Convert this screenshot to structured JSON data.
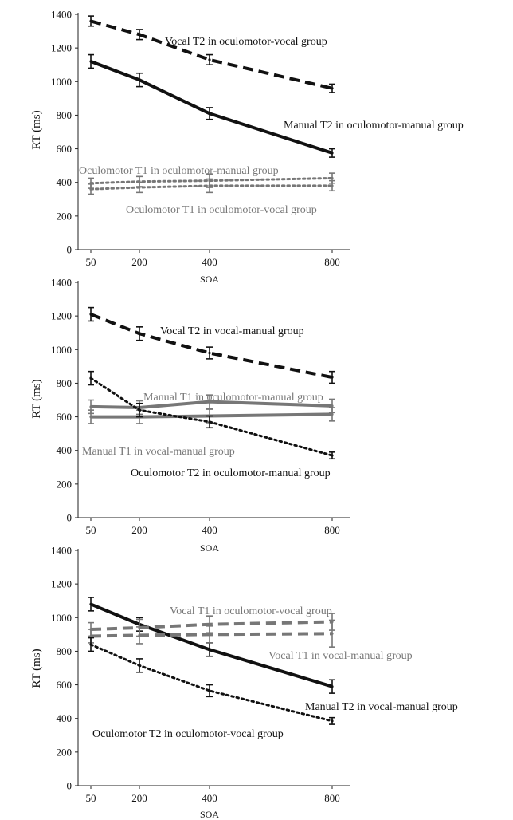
{
  "chart_data": [
    {
      "type": "line",
      "xlabel": "SOA",
      "ylabel": "RT (ms)",
      "x": [
        50,
        200,
        400,
        800
      ],
      "x_ticks": [
        "50",
        "200",
        "400",
        "800"
      ],
      "ylim": [
        0,
        1400
      ],
      "y_ticks": [
        0,
        200,
        400,
        600,
        800,
        1000,
        1200,
        1400
      ],
      "grid": false,
      "series": [
        {
          "name": "Vocal T2 in oculomotor-vocal group",
          "values": [
            1360,
            1280,
            1130,
            960
          ],
          "error": [
            30,
            30,
            30,
            25
          ],
          "style": "dashed",
          "color": "#111111",
          "label_text": "Vocal  T2 in oculomotor-vocal  group"
        },
        {
          "name": "Manual T2 in oculomotor-manual group",
          "values": [
            1120,
            1010,
            810,
            575
          ],
          "error": [
            40,
            40,
            35,
            25
          ],
          "style": "solid",
          "color": "#111111",
          "label_text": "Manual T2 in oculomotor-manual  group"
        },
        {
          "name": "Oculomotor T1 in oculomotor-manual group",
          "values": [
            395,
            405,
            410,
            425
          ],
          "error": [
            30,
            30,
            40,
            30
          ],
          "style": "dotted",
          "color": "#777777",
          "label_text": "Oculomotor T1 in oculomotor-manual group"
        },
        {
          "name": "Oculomotor T1 in oculomotor-vocal group",
          "values": [
            360,
            370,
            380,
            380
          ],
          "error": [
            30,
            30,
            40,
            30
          ],
          "style": "dotted",
          "color": "#777777",
          "label_text": "Oculomotor T1 in oculomotor-vocal group"
        }
      ]
    },
    {
      "type": "line",
      "xlabel": "SOA",
      "ylabel": "RT (ms)",
      "x": [
        50,
        200,
        400,
        800
      ],
      "x_ticks": [
        "50",
        "200",
        "400",
        "800"
      ],
      "ylim": [
        0,
        1400
      ],
      "y_ticks": [
        0,
        200,
        400,
        600,
        800,
        1000,
        1200,
        1400
      ],
      "grid": false,
      "series": [
        {
          "name": "Vocal T2 in vocal-manual group",
          "values": [
            1210,
            1095,
            980,
            835
          ],
          "error": [
            40,
            40,
            35,
            35
          ],
          "style": "dashed",
          "color": "#111111",
          "label_text": "Vocal  T2 in vocal-manual  group"
        },
        {
          "name": "Manual T1 in oculomotor-manual group",
          "values": [
            660,
            655,
            690,
            665
          ],
          "error": [
            40,
            40,
            40,
            40
          ],
          "style": "solid",
          "color": "#777777",
          "label_text": "Manual T1 in oculomotor-manual  group"
        },
        {
          "name": "Manual T1 in vocal-manual group",
          "values": [
            600,
            600,
            605,
            615
          ],
          "error": [
            40,
            40,
            40,
            40
          ],
          "style": "solid",
          "color": "#777777",
          "label_text": "Manual T1 in vocal-manual  group"
        },
        {
          "name": "Oculomotor T2 in oculomotor-manual group",
          "values": [
            830,
            640,
            570,
            370
          ],
          "error": [
            40,
            40,
            35,
            20
          ],
          "style": "dotted",
          "color": "#111111",
          "label_text": "Oculomotor T2 in oculomotor-manual group"
        }
      ]
    },
    {
      "type": "line",
      "xlabel": "SOA",
      "ylabel": "RT (ms)",
      "x": [
        50,
        200,
        400,
        800
      ],
      "x_ticks": [
        "50",
        "200",
        "400",
        "800"
      ],
      "ylim": [
        0,
        1400
      ],
      "y_ticks": [
        0,
        200,
        400,
        600,
        800,
        1000,
        1200,
        1400
      ],
      "grid": false,
      "series": [
        {
          "name": "Manual T2 in vocal-manual group",
          "values": [
            1080,
            960,
            810,
            590
          ],
          "error": [
            40,
            40,
            40,
            40
          ],
          "style": "solid",
          "color": "#111111",
          "label_text": "Manual T2 in vocal-manual  group"
        },
        {
          "name": "Vocal T1 in oculomotor-vocal group",
          "values": [
            930,
            940,
            960,
            975
          ],
          "error": [
            40,
            50,
            50,
            50
          ],
          "style": "dashed",
          "color": "#777777",
          "label_text": "Vocal  T1 in oculomotor-vocal  group"
        },
        {
          "name": "Vocal T1 in vocal-manual group",
          "values": [
            890,
            895,
            900,
            905
          ],
          "error": [
            40,
            50,
            50,
            80
          ],
          "style": "dashed",
          "color": "#777777",
          "label_text": "Vocal  T1 in vocal-manual  group"
        },
        {
          "name": "Oculomotor T2 in oculomotor-vocal group",
          "values": [
            840,
            715,
            565,
            385
          ],
          "error": [
            40,
            40,
            35,
            20
          ],
          "style": "dotted",
          "color": "#111111",
          "label_text": "Oculomotor T2 in oculomotor-vocal group"
        }
      ]
    }
  ]
}
